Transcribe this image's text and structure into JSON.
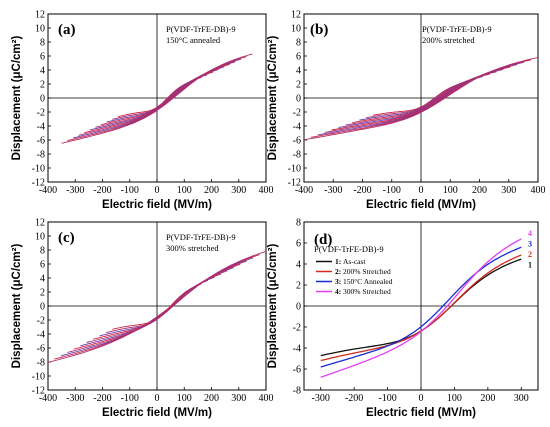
{
  "colors": {
    "loop": "#cc2244",
    "black": "#111111",
    "red": "#d42a1c",
    "blue": "#1a2ccf",
    "magenta": "#e040ee"
  },
  "chart_data": [
    {
      "type": "line",
      "panel_label": "(a)",
      "sample": "P(VDF-TrFE-DB)-9",
      "condition": "150°C annealed",
      "xlabel": "Electric field (MV/m)",
      "ylabel": "Displacement (μC/cm²)",
      "xlim": [
        -400,
        400
      ],
      "ylim": [
        -12,
        12
      ],
      "xticks": [
        -400,
        -300,
        -200,
        -100,
        0,
        100,
        200,
        300,
        400
      ],
      "yticks": [
        -12,
        -10,
        -8,
        -6,
        -4,
        -2,
        0,
        2,
        4,
        6,
        8,
        10,
        12
      ],
      "loops": {
        "count": 11,
        "emax": 350,
        "dmax": 6.3,
        "dr": 1.3,
        "ec": 75
      }
    },
    {
      "type": "line",
      "panel_label": "(b)",
      "sample": "P(VDF-TrFE-DB)-9",
      "condition": "200% stretched",
      "xlabel": "Electric field (MV/m)",
      "ylabel": "Displacement (μC/cm²)",
      "xlim": [
        -400,
        400
      ],
      "ylim": [
        -12,
        12
      ],
      "xticks": [
        -400,
        -300,
        -200,
        -100,
        0,
        100,
        200,
        300,
        400
      ],
      "yticks": [
        -12,
        -10,
        -8,
        -6,
        -4,
        -2,
        0,
        2,
        4,
        6,
        8,
        10,
        12
      ],
      "loops": {
        "count": 11,
        "emax": 400,
        "dmax": 5.8,
        "dr": 0.9,
        "ec": 90
      }
    },
    {
      "type": "line",
      "panel_label": "(c)",
      "sample": "P(VDF-TrFE-DB)-9",
      "condition": "300% stretched",
      "xlabel": "Electric field (MV/m)",
      "ylabel": "Displacement (μC/cm²)",
      "xlim": [
        -400,
        400
      ],
      "ylim": [
        -12,
        12
      ],
      "xticks": [
        -400,
        -300,
        -200,
        -100,
        0,
        100,
        200,
        300,
        400
      ],
      "yticks": [
        -12,
        -10,
        -8,
        -6,
        -4,
        -2,
        0,
        2,
        4,
        6,
        8,
        10,
        12
      ],
      "loops": {
        "count": 11,
        "emax": 400,
        "dmax": 7.8,
        "dr": 2.8,
        "ec": 100
      }
    },
    {
      "type": "line",
      "panel_label": "(d)",
      "sample": "P(VDF-TrFE-DB)-9",
      "xlabel": "Electric field (MV/m)",
      "ylabel": "Displacement (μC/cm²)",
      "xlim": [
        -350,
        350
      ],
      "ylim": [
        -8,
        8
      ],
      "xticks": [
        -300,
        -200,
        -100,
        0,
        100,
        200,
        300
      ],
      "yticks": [
        -8,
        -6,
        -4,
        -2,
        0,
        2,
        4,
        6,
        8
      ],
      "legend": "top-left",
      "series": [
        {
          "name": "As-cast",
          "num": "1",
          "color": "#111111",
          "emax": 300,
          "dmax": 4.5,
          "dr": 0.5,
          "ec": 90
        },
        {
          "name": "200% Stretched",
          "num": "2",
          "color": "#d42a1c",
          "emax": 300,
          "dmax": 4.9,
          "dr": 1.0,
          "ec": 100
        },
        {
          "name": "150°C Annealed",
          "num": "3",
          "color": "#1a2ccf",
          "emax": 300,
          "dmax": 5.6,
          "dr": 1.3,
          "ec": 80
        },
        {
          "name": "300% Stretched",
          "num": "4",
          "color": "#e040ee",
          "emax": 300,
          "dmax": 6.4,
          "dr": 2.3,
          "ec": 110
        }
      ]
    }
  ]
}
